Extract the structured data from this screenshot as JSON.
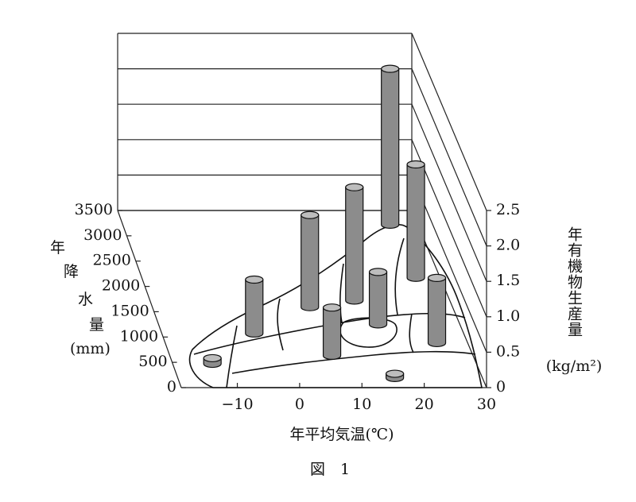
{
  "chart_data": {
    "type": "cylinder3d",
    "x_label": "年平均気温(℃)",
    "y_label": [
      "年",
      "降",
      "水",
      "量",
      "(mm)"
    ],
    "z_label": [
      "年有機物生産量",
      "(kg/m²)"
    ],
    "caption": "図　1",
    "x": [
      25.4,
      26,
      14.4,
      6.7,
      16.7,
      -4,
      25,
      7.2,
      -12.6,
      15.9
    ],
    "y": [
      3220,
      2170,
      1720,
      1590,
      1250,
      1070,
      880,
      630,
      470,
      190
    ],
    "z": [
      2.2,
      1.6,
      1.6,
      1.3,
      0.74,
      0.76,
      0.92,
      0.68,
      0.08,
      0.06
    ],
    "color": "#8c8c8c",
    "xlim": [
      -19,
      30
    ],
    "xticks": [
      {
        "value": -10,
        "label": "−10"
      },
      0,
      10,
      20,
      30
    ],
    "ylim": [
      0,
      3500
    ],
    "yticks": [
      0,
      500,
      1000,
      1500,
      2000,
      2500,
      3000,
      3500
    ],
    "zlim": [
      0,
      2.5
    ],
    "zticks": [
      0,
      0.5,
      {
        "value": 1,
        "label": "1.0"
      },
      1.5,
      {
        "value": 2,
        "label": "2.0"
      },
      2.5
    ],
    "grid": true
  }
}
